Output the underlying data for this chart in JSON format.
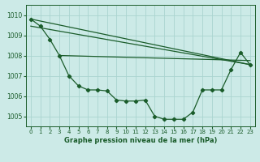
{
  "background_color": "#cceae7",
  "grid_color": "#aad4d0",
  "line_color": "#1a5c2a",
  "title": "Graphe pression niveau de la mer (hPa)",
  "xlim": [
    -0.5,
    23.5
  ],
  "ylim": [
    1004.5,
    1010.5
  ],
  "yticks": [
    1005,
    1006,
    1007,
    1008,
    1009,
    1010
  ],
  "xticks": [
    0,
    1,
    2,
    3,
    4,
    5,
    6,
    7,
    8,
    9,
    10,
    11,
    12,
    13,
    14,
    15,
    16,
    17,
    18,
    19,
    20,
    21,
    22,
    23
  ],
  "series_main_x": [
    0,
    1,
    2,
    3,
    4,
    5,
    6,
    7,
    8,
    9,
    10,
    11,
    12,
    13,
    14,
    15,
    16,
    17,
    18,
    19,
    20,
    21,
    22,
    23
  ],
  "series_main_y": [
    1009.8,
    1009.45,
    1008.8,
    1008.0,
    1007.0,
    1006.5,
    1006.3,
    1006.3,
    1006.25,
    1005.8,
    1005.75,
    1005.75,
    1005.8,
    1005.0,
    1004.85,
    1004.85,
    1004.85,
    1005.2,
    1006.3,
    1006.3,
    1006.3,
    1007.3,
    1008.15,
    1007.55
  ],
  "line1_x": [
    0,
    23
  ],
  "line1_y": [
    1009.8,
    1007.55
  ],
  "line2_x": [
    0,
    23
  ],
  "line2_y": [
    1009.45,
    1007.55
  ],
  "line3_x": [
    3,
    23
  ],
  "line3_y": [
    1008.0,
    1007.75
  ]
}
